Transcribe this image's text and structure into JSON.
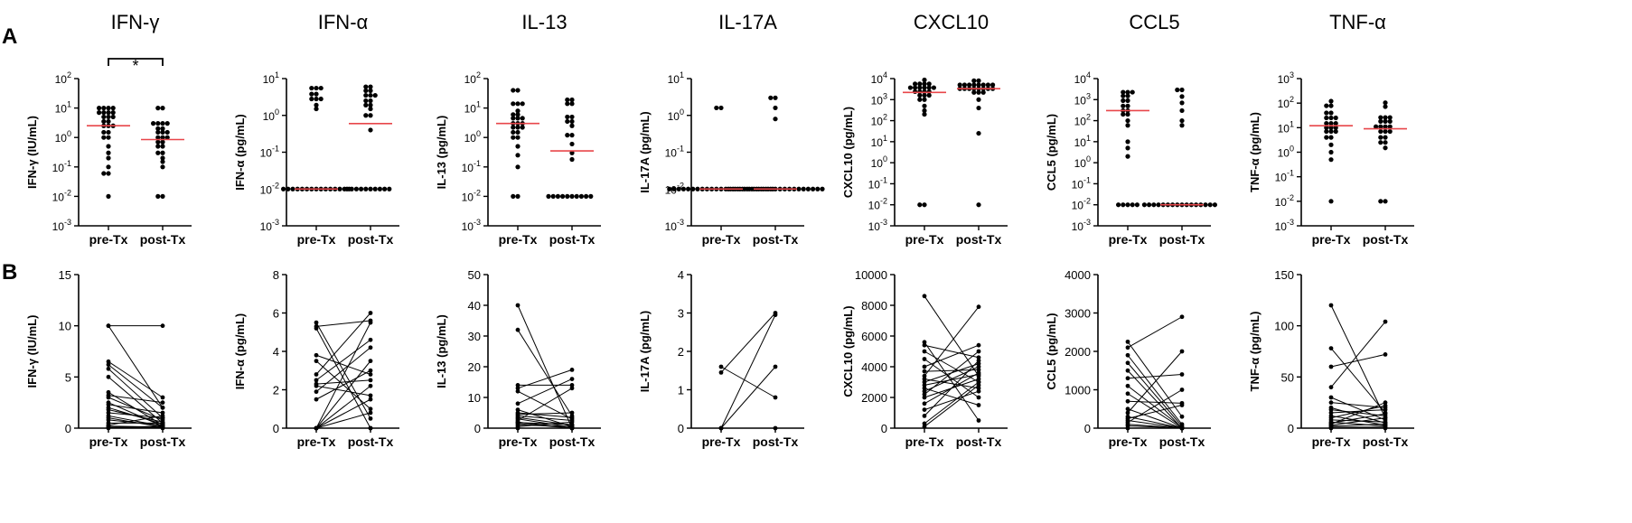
{
  "panel_labels": [
    "A",
    "B"
  ],
  "group_labels": [
    "pre-Tx",
    "post-Tx"
  ],
  "significance_mark": "*",
  "colors": {
    "median_line": "#e8464a",
    "points": "#000000"
  },
  "chart_data": [
    {
      "type": "scatter",
      "row": "A",
      "title": "IFN-γ",
      "ylabel": "IFN-γ (IU/mL)",
      "yscale": "log",
      "ylim": [
        0.001,
        100
      ],
      "ytick_exponents": [
        "2",
        "1",
        "0",
        "-1",
        "-2",
        "-3"
      ],
      "categories": [
        "pre-Tx",
        "post-Tx"
      ],
      "medians": [
        2.5,
        0.85
      ],
      "significance": "*",
      "series": [
        {
          "name": "pre-Tx",
          "values": [
            10,
            10,
            10,
            9,
            7,
            7,
            6,
            6,
            5,
            5,
            4,
            3.5,
            3,
            2.5,
            2.2,
            2,
            1.5,
            1.2,
            1,
            0.8,
            0.5,
            0.3,
            0.2,
            0.1,
            0.06,
            0.05,
            0.01
          ]
        },
        {
          "name": "post-Tx",
          "values": [
            10,
            10,
            3,
            3,
            3,
            2.5,
            2,
            2,
            1.5,
            1.5,
            1.2,
            1,
            1,
            0.8,
            0.7,
            0.6,
            0.5,
            0.4,
            0.3,
            0.25,
            0.2,
            0.15,
            0.1,
            0.01,
            0.01
          ]
        }
      ]
    },
    {
      "type": "scatter",
      "row": "A",
      "title": "IFN-α",
      "ylabel": "IFN-α (pg/mL)",
      "yscale": "log",
      "ylim": [
        0.001,
        10
      ],
      "ytick_exponents": [
        "1",
        "0",
        "-1",
        "-2",
        "-3"
      ],
      "categories": [
        "pre-Tx",
        "post-Tx"
      ],
      "medians": [
        0.01,
        0.6
      ],
      "series": [
        {
          "name": "pre-Tx",
          "values": [
            5.5,
            5.3,
            5.2,
            3.8,
            3.5,
            2.8,
            2.5,
            2.3,
            1.9,
            1.5,
            0.01,
            0.01,
            0.01,
            0.01,
            0.01,
            0.01,
            0.01,
            0.01,
            0.01,
            0.01,
            0.01,
            0.01,
            0.01,
            0.01,
            0.01
          ]
        },
        {
          "name": "post-Tx",
          "values": [
            6,
            5.6,
            4.7,
            4.2,
            3.5,
            3,
            2.8,
            2.5,
            2.2,
            1.9,
            1.6,
            1.5,
            1,
            0.8,
            0.4,
            0.01,
            0.01,
            0.01,
            0.01,
            0.01,
            0.01,
            0.01,
            0.01,
            0.01,
            0.01
          ]
        }
      ]
    },
    {
      "type": "scatter",
      "row": "A",
      "title": "IL-13",
      "ylabel": "IL-13 (pg/mL)",
      "yscale": "log",
      "ylim": [
        0.001,
        100
      ],
      "ytick_exponents": [
        "2",
        "1",
        "0",
        "-1",
        "-2",
        "-3"
      ],
      "categories": [
        "pre-Tx",
        "post-Tx"
      ],
      "medians": [
        3,
        0.35
      ],
      "series": [
        {
          "name": "pre-Tx",
          "values": [
            40,
            32,
            14,
            13,
            12,
            8,
            6,
            5,
            4.5,
            4,
            3.5,
            3,
            3,
            2.5,
            2.2,
            2,
            1.8,
            1.5,
            1.3,
            1,
            0.8,
            0.5,
            0.25,
            0.1,
            0.01,
            0.01
          ]
        },
        {
          "name": "post-Tx",
          "values": [
            19,
            16,
            14,
            13,
            5,
            4,
            3.5,
            3,
            2.5,
            1.2,
            1,
            0.6,
            0.3,
            0.18,
            0.01,
            0.01,
            0.01,
            0.01,
            0.01,
            0.01,
            0.01,
            0.01,
            0.01,
            0.01
          ]
        }
      ]
    },
    {
      "type": "scatter",
      "row": "A",
      "title": "IL-17A",
      "ylabel": "IL-17A (pg/mL)",
      "yscale": "log",
      "ylim": [
        0.001,
        10
      ],
      "ytick_exponents": [
        "1",
        "0",
        "-1",
        "-2",
        "-3"
      ],
      "categories": [
        "pre-Tx",
        "post-Tx"
      ],
      "medians": [
        0.01,
        0.01
      ],
      "series": [
        {
          "name": "pre-Tx",
          "values": [
            1.6,
            1.45,
            0.01,
            0.01,
            0.01,
            0.01,
            0.01,
            0.01,
            0.01,
            0.01,
            0.01,
            0.01,
            0.01,
            0.01,
            0.01,
            0.01,
            0.01,
            0.01,
            0.01,
            0.01,
            0.01,
            0.01,
            0.01,
            0.01,
            0.01
          ]
        },
        {
          "name": "post-Tx",
          "values": [
            3,
            2.9,
            1.6,
            0.8,
            0.01,
            0.01,
            0.01,
            0.01,
            0.01,
            0.01,
            0.01,
            0.01,
            0.01,
            0.01,
            0.01,
            0.01,
            0.01,
            0.01,
            0.01,
            0.01,
            0.01,
            0.01,
            0.01,
            0.01,
            0.01
          ]
        }
      ]
    },
    {
      "type": "scatter",
      "row": "A",
      "title": "CXCL10",
      "ylabel": "CXCL10 (pg/mL)",
      "yscale": "log",
      "ylim": [
        0.001,
        10000
      ],
      "ytick_exponents": [
        "4",
        "3",
        "2",
        "1",
        "0",
        "-1",
        "-2",
        "-3"
      ],
      "categories": [
        "pre-Tx",
        "post-Tx"
      ],
      "medians": [
        2200,
        3300
      ],
      "series": [
        {
          "name": "pre-Tx",
          "values": [
            8600,
            5600,
            5000,
            4500,
            4000,
            3700,
            3400,
            3200,
            3000,
            2800,
            2600,
            2400,
            2200,
            2000,
            1800,
            1600,
            1400,
            1200,
            1000,
            800,
            500,
            300,
            200,
            0.01,
            0.01
          ]
        },
        {
          "name": "post-Tx",
          "values": [
            7900,
            5400,
            5000,
            4600,
            4300,
            4000,
            3800,
            3600,
            3500,
            3400,
            3300,
            3200,
            3100,
            3000,
            2900,
            2800,
            2600,
            2400,
            2200,
            2000,
            1500,
            1000,
            400,
            25,
            0.01
          ]
        }
      ]
    },
    {
      "type": "scatter",
      "row": "A",
      "title": "CCL5",
      "ylabel": "CCL5 (pg/mL)",
      "yscale": "log",
      "ylim": [
        0.001,
        10000
      ],
      "ytick_exponents": [
        "4",
        "3",
        "2",
        "1",
        "0",
        "-1",
        "-2",
        "-3"
      ],
      "categories": [
        "pre-Tx",
        "post-Tx"
      ],
      "medians": [
        300,
        0.01
      ],
      "series": [
        {
          "name": "pre-Tx",
          "values": [
            2250,
            2100,
            1800,
            1500,
            1200,
            900,
            700,
            500,
            400,
            300,
            250,
            200,
            150,
            100,
            60,
            10,
            5,
            2,
            0.01,
            0.01,
            0.01,
            0.01,
            0.01
          ]
        },
        {
          "name": "post-Tx",
          "values": [
            2900,
            2000,
            1400,
            700,
            300,
            100,
            60,
            0.01,
            0.01,
            0.01,
            0.01,
            0.01,
            0.01,
            0.01,
            0.01,
            0.01,
            0.01,
            0.01,
            0.01,
            0.01,
            0.01,
            0.01,
            0.01
          ]
        }
      ]
    },
    {
      "type": "scatter",
      "row": "A",
      "title": "TNF-α",
      "ylabel": "TNF-α (pg/mL)",
      "yscale": "log",
      "ylim": [
        0.001,
        1000
      ],
      "ytick_exponents": [
        "3",
        "2",
        "1",
        "0",
        "-1",
        "-2",
        "-3"
      ],
      "categories": [
        "pre-Tx",
        "post-Tx"
      ],
      "medians": [
        12,
        9
      ],
      "series": [
        {
          "name": "pre-Tx",
          "values": [
            120,
            78,
            60,
            40,
            30,
            25,
            20,
            18,
            15,
            12,
            11,
            10,
            9,
            8,
            7,
            6,
            5,
            4,
            3,
            2,
            1,
            0.5,
            0.01
          ]
        },
        {
          "name": "post-Tx",
          "values": [
            104,
            72,
            26,
            22,
            20,
            18,
            15,
            13,
            11,
            10,
            9,
            8,
            7,
            6,
            5,
            4,
            3,
            2.5,
            2,
            1.5,
            0.01,
            0.01
          ]
        }
      ]
    },
    {
      "type": "line",
      "row": "B",
      "title": "",
      "ylabel": "IFN-γ (IU/mL)",
      "ylim": [
        0,
        15
      ],
      "yticks": [
        "0",
        "5",
        "10",
        "15"
      ],
      "categories": [
        "pre-Tx",
        "post-Tx"
      ],
      "pairs": [
        [
          10,
          10
        ],
        [
          10,
          2
        ],
        [
          6.5,
          3
        ],
        [
          6.2,
          2
        ],
        [
          5.8,
          1
        ],
        [
          5,
          0.5
        ],
        [
          3.5,
          0.3
        ],
        [
          3.2,
          2.5
        ],
        [
          3,
          0.8
        ],
        [
          2.5,
          0.2
        ],
        [
          2.3,
          1.5
        ],
        [
          2,
          0.4
        ],
        [
          1.8,
          0.6
        ],
        [
          1.5,
          1
        ],
        [
          1.2,
          0.2
        ],
        [
          1,
          0.1
        ],
        [
          0.8,
          0.3
        ],
        [
          0.5,
          0.5
        ],
        [
          0.3,
          1.2
        ],
        [
          0.2,
          0.1
        ],
        [
          0.1,
          0.05
        ],
        [
          0.05,
          0.2
        ],
        [
          0.01,
          0.01
        ]
      ]
    },
    {
      "type": "line",
      "row": "B",
      "title": "",
      "ylabel": "IFN-α (pg/mL)",
      "ylim": [
        0,
        8
      ],
      "yticks": [
        "0",
        "2",
        "4",
        "6",
        "8"
      ],
      "categories": [
        "pre-Tx",
        "post-Tx"
      ],
      "pairs": [
        [
          5.5,
          0.5
        ],
        [
          5.3,
          5.6
        ],
        [
          5.2,
          0
        ],
        [
          3.8,
          2.8
        ],
        [
          3.5,
          1
        ],
        [
          2.8,
          6
        ],
        [
          2.5,
          4.6
        ],
        [
          2.3,
          2.5
        ],
        [
          2.2,
          1.7
        ],
        [
          1.9,
          4.2
        ],
        [
          1.5,
          3
        ],
        [
          0,
          5.5
        ],
        [
          0,
          3.5
        ],
        [
          0,
          2.2
        ],
        [
          0,
          1.5
        ],
        [
          0,
          0.8
        ],
        [
          0,
          0
        ]
      ]
    },
    {
      "type": "line",
      "row": "B",
      "title": "",
      "ylabel": "IL-13 (pg/mL)",
      "ylim": [
        0,
        50
      ],
      "yticks": [
        "0",
        "10",
        "20",
        "30",
        "40",
        "50"
      ],
      "categories": [
        "pre-Tx",
        "post-Tx"
      ],
      "pairs": [
        [
          40,
          0
        ],
        [
          32,
          4
        ],
        [
          14,
          14
        ],
        [
          13,
          19
        ],
        [
          12,
          3
        ],
        [
          8,
          16
        ],
        [
          6,
          0.5
        ],
        [
          5,
          3.5
        ],
        [
          4.5,
          5
        ],
        [
          4,
          2.5
        ],
        [
          3.5,
          1
        ],
        [
          3,
          0.3
        ],
        [
          2.5,
          13
        ],
        [
          2,
          0
        ],
        [
          1.8,
          1.2
        ],
        [
          1.5,
          0
        ],
        [
          1,
          0.6
        ],
        [
          0.5,
          2
        ],
        [
          0,
          0
        ]
      ]
    },
    {
      "type": "line",
      "row": "B",
      "title": "",
      "ylabel": "IL-17A (pg/mL)",
      "ylim": [
        0,
        4
      ],
      "yticks": [
        "0",
        "1",
        "2",
        "3",
        "4"
      ],
      "categories": [
        "pre-Tx",
        "post-Tx"
      ],
      "pairs": [
        [
          1.6,
          0.8
        ],
        [
          1.45,
          3
        ],
        [
          0,
          2.95
        ],
        [
          0,
          1.6
        ],
        [
          0,
          0
        ]
      ]
    },
    {
      "type": "line",
      "row": "B",
      "title": "",
      "ylabel": "CXCL10 (pg/mL)",
      "ylim": [
        0,
        10000
      ],
      "yticks": [
        "0",
        "2000",
        "4000",
        "6000",
        "8000",
        "10000"
      ],
      "categories": [
        "pre-Tx",
        "post-Tx"
      ],
      "pairs": [
        [
          8600,
          3400
        ],
        [
          5600,
          500
        ],
        [
          5400,
          4600
        ],
        [
          5000,
          3000
        ],
        [
          4500,
          2000
        ],
        [
          4000,
          5400
        ],
        [
          3700,
          3800
        ],
        [
          3400,
          7900
        ],
        [
          3200,
          2600
        ],
        [
          3000,
          4200
        ],
        [
          2800,
          3500
        ],
        [
          2600,
          1500
        ],
        [
          2400,
          4000
        ],
        [
          2200,
          5000
        ],
        [
          2000,
          3200
        ],
        [
          1600,
          3600
        ],
        [
          1200,
          2400
        ],
        [
          800,
          4400
        ],
        [
          300,
          3000
        ],
        [
          100,
          2800
        ]
      ]
    },
    {
      "type": "line",
      "row": "B",
      "title": "",
      "ylabel": "CCL5 (pg/mL)",
      "ylim": [
        0,
        4000
      ],
      "yticks": [
        "0",
        "1000",
        "2000",
        "3000",
        "4000"
      ],
      "categories": [
        "pre-Tx",
        "post-Tx"
      ],
      "pairs": [
        [
          2250,
          300
        ],
        [
          2100,
          2900
        ],
        [
          1900,
          100
        ],
        [
          1700,
          50
        ],
        [
          1500,
          0
        ],
        [
          1300,
          1400
        ],
        [
          1100,
          20
        ],
        [
          900,
          0
        ],
        [
          700,
          650
        ],
        [
          500,
          0
        ],
        [
          400,
          2000
        ],
        [
          300,
          0
        ],
        [
          250,
          600
        ],
        [
          200,
          0
        ],
        [
          150,
          1000
        ],
        [
          100,
          0
        ],
        [
          60,
          0
        ],
        [
          0,
          0
        ]
      ]
    },
    {
      "type": "line",
      "row": "B",
      "title": "",
      "ylabel": "TNF-α (pg/mL)",
      "ylim": [
        0,
        150
      ],
      "yticks": [
        "0",
        "50",
        "100",
        "150"
      ],
      "categories": [
        "pre-Tx",
        "post-Tx"
      ],
      "pairs": [
        [
          120,
          10
        ],
        [
          78,
          15
        ],
        [
          60,
          72
        ],
        [
          40,
          104
        ],
        [
          30,
          8
        ],
        [
          25,
          20
        ],
        [
          20,
          5
        ],
        [
          18,
          12
        ],
        [
          15,
          18
        ],
        [
          12,
          3
        ],
        [
          10,
          22
        ],
        [
          8,
          6
        ],
        [
          6,
          2
        ],
        [
          5,
          14
        ],
        [
          4,
          25
        ],
        [
          3,
          10
        ],
        [
          2,
          4
        ],
        [
          1,
          1
        ],
        [
          0,
          0
        ]
      ]
    }
  ]
}
